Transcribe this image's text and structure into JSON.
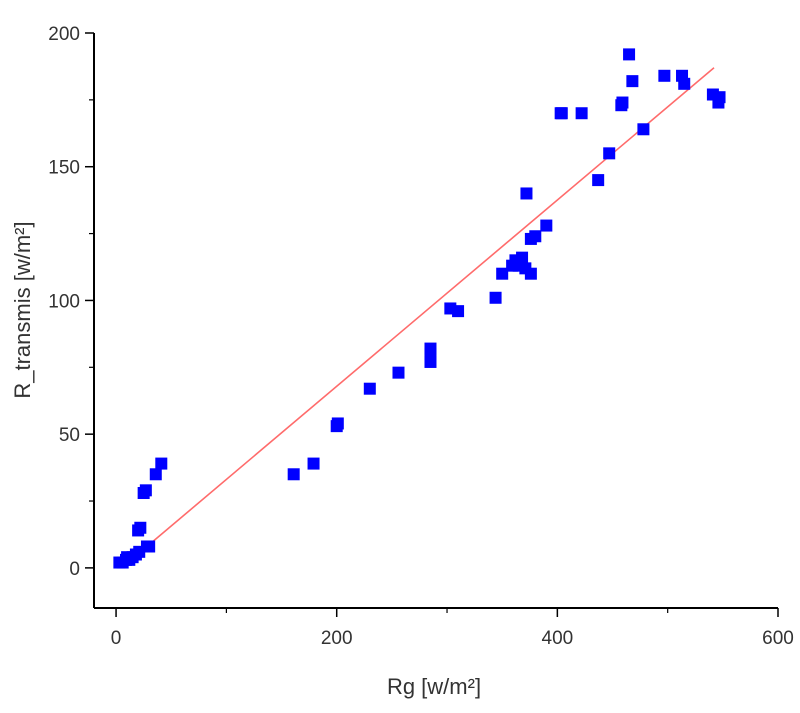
{
  "chart_data": {
    "type": "scatter",
    "xlabel": "Rg [w/m²]",
    "ylabel": "R_transmis [w/m²]",
    "xlim": [
      -20,
      600
    ],
    "ylim": [
      -15,
      200
    ],
    "x_ticks": [
      0,
      200,
      400,
      600
    ],
    "x_minor_ticks": [
      100,
      300,
      500
    ],
    "y_ticks": [
      0,
      50,
      100,
      150,
      200
    ],
    "y_minor_ticks": [
      25,
      75,
      125,
      175
    ],
    "grid": false,
    "colors": {
      "points": "#0000ff",
      "fit_line": "#ff6b6b",
      "axes": "#000000"
    },
    "series": [
      {
        "points": [
          [
            3,
            2
          ],
          [
            6,
            2
          ],
          [
            9,
            3
          ],
          [
            12,
            3
          ],
          [
            15,
            4
          ],
          [
            18,
            5
          ],
          [
            21,
            6
          ],
          [
            10,
            4
          ],
          [
            28,
            8
          ],
          [
            30,
            8
          ],
          [
            22,
            15
          ],
          [
            20,
            14
          ],
          [
            27,
            29
          ],
          [
            25,
            28
          ],
          [
            36,
            35
          ],
          [
            41,
            39
          ],
          [
            161,
            35
          ],
          [
            179,
            39
          ],
          [
            200,
            53
          ],
          [
            201,
            54
          ],
          [
            230,
            67
          ],
          [
            256,
            73
          ],
          [
            285,
            77
          ],
          [
            285,
            80
          ],
          [
            285,
            82
          ],
          [
            303,
            97
          ],
          [
            310,
            96
          ],
          [
            344,
            101
          ],
          [
            350,
            110
          ],
          [
            359,
            113
          ],
          [
            362,
            115
          ],
          [
            365,
            113
          ],
          [
            368,
            116
          ],
          [
            371,
            112
          ],
          [
            376,
            110
          ],
          [
            376,
            123
          ],
          [
            380,
            124
          ],
          [
            372,
            140
          ],
          [
            390,
            128
          ],
          [
            403,
            170
          ],
          [
            404,
            170
          ],
          [
            422,
            170
          ],
          [
            437,
            145
          ],
          [
            447,
            155
          ],
          [
            458,
            173
          ],
          [
            459,
            174
          ],
          [
            465,
            192
          ],
          [
            468,
            182
          ],
          [
            478,
            164
          ],
          [
            497,
            184
          ],
          [
            513,
            184
          ],
          [
            515,
            181
          ],
          [
            541,
            177
          ],
          [
            546,
            174
          ],
          [
            547,
            176
          ]
        ]
      }
    ],
    "fit_line": [
      [
        5,
        0
      ],
      [
        542,
        187
      ]
    ]
  }
}
